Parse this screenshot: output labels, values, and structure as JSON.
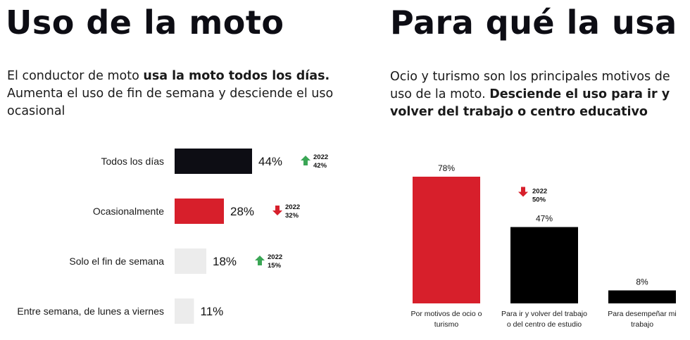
{
  "left": {
    "title": "Uso de la moto",
    "subtitle_part1": "El conductor de moto ",
    "subtitle_bold": "usa la moto todos los días.",
    "subtitle_part2": " Aumenta el uso de fin de semana y desciende el uso ocasional"
  },
  "right": {
    "title": "Para qué la usa",
    "subtitle_part1": "Ocio y turismo son los principales motivos de uso de la moto. ",
    "subtitle_bold": "Desciende el uso para ir y volver del trabajo o centro educativo"
  },
  "colors": {
    "black": "#0d0d14",
    "red": "#d71f2b",
    "light": "#ececec",
    "up": "#3aa655",
    "down": "#d71f2b"
  },
  "chart_data": [
    {
      "type": "bar",
      "orientation": "horizontal",
      "categories": [
        "Todos los días",
        "Ocasionalmente",
        "Solo el fin de semana",
        "Entre semana, de lunes a viernes"
      ],
      "values": [
        44,
        28,
        18,
        11
      ],
      "value_labels": [
        "44%",
        "28%",
        "18%",
        "11%"
      ],
      "bar_colors": [
        "#0d0d14",
        "#d71f2b",
        "#ececec",
        "#ececec"
      ],
      "comparisons": [
        {
          "label": "2022",
          "value": "42%",
          "direction": "up",
          "arrow_icon": "arrow-up-icon"
        },
        {
          "label": "2022",
          "value": "32%",
          "direction": "down",
          "arrow_icon": "arrow-down-icon"
        },
        {
          "label": "2022",
          "value": "15%",
          "direction": "up",
          "arrow_icon": "arrow-up-icon"
        },
        null
      ],
      "xlim": [
        0,
        100
      ]
    },
    {
      "type": "bar",
      "orientation": "vertical",
      "categories": [
        [
          "Por motivos de ocio o",
          "turismo"
        ],
        [
          "Para ir y volver del trabajo",
          "o del centro de estudio"
        ],
        [
          "Para desempeñar mi",
          "trabajo"
        ]
      ],
      "values": [
        78,
        47,
        8
      ],
      "value_labels": [
        "78%",
        "47%",
        "8%"
      ],
      "bar_colors": [
        "#d71f2b",
        "#000000",
        "#000000"
      ],
      "comparisons": [
        null,
        {
          "label": "2022",
          "value": "50%",
          "direction": "down",
          "arrow_icon": "arrow-down-icon"
        },
        null
      ],
      "ylim": [
        0,
        100
      ]
    }
  ]
}
